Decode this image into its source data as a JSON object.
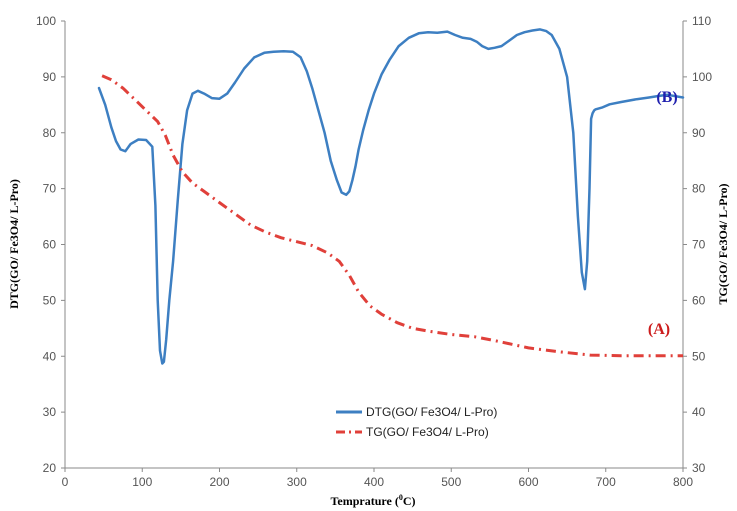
{
  "chart_data": {
    "type": "line",
    "xlabel": "Temprature (",
    "xlabel_sup": "0",
    "xlabel_end": "C)",
    "ylabel_left": "DTG(GO/ Fe3O4/ L-Pro)",
    "ylabel_right": "TG(GO/ Fe3O4/ L-Pro)",
    "x_ticks": [
      "0",
      "100",
      "200",
      "300",
      "400",
      "500",
      "600",
      "700",
      "800"
    ],
    "y_left_ticks": [
      "20",
      "30",
      "40",
      "50",
      "60",
      "70",
      "80",
      "90",
      "100"
    ],
    "y_right_ticks": [
      "30",
      "40",
      "50",
      "60",
      "70",
      "80",
      "90",
      "100",
      "110"
    ],
    "xlim": [
      0,
      800
    ],
    "ylim_left": [
      20,
      100
    ],
    "ylim_right": [
      30,
      110
    ],
    "grid": false,
    "legend_position": "bottom-center",
    "series": [
      {
        "name": "DTG(GO/ Fe3O4/ L-Pro)",
        "axis": "left",
        "color": "#3d7fc2",
        "style": "solid",
        "label": "(B)",
        "label_color": "#1f1fae",
        "x": [
          44,
          52,
          60,
          66,
          72,
          78,
          85,
          95,
          105,
          113,
          117,
          120,
          123,
          126,
          128,
          131,
          135,
          140,
          146,
          152,
          158,
          165,
          172,
          180,
          190,
          200,
          210,
          220,
          232,
          245,
          258,
          270,
          283,
          295,
          305,
          313,
          320,
          328,
          336,
          344,
          352,
          358,
          364,
          368,
          372,
          376,
          380,
          386,
          393,
          400,
          410,
          420,
          432,
          445,
          458,
          470,
          482,
          495,
          505,
          515,
          525,
          533,
          540,
          548,
          556,
          565,
          575,
          585,
          595,
          605,
          615,
          623,
          630,
          640,
          650,
          658,
          664,
          669,
          673,
          676,
          679,
          681,
          683,
          685,
          687,
          690,
          695,
          705,
          720,
          740,
          756,
          765,
          780,
          800
        ],
        "y": [
          88,
          85,
          81,
          78.5,
          77,
          76.7,
          78,
          78.8,
          78.7,
          77.5,
          67,
          50,
          41,
          38.7,
          39,
          43,
          50,
          57,
          68,
          78,
          84,
          87,
          87.5,
          87,
          86.2,
          86.1,
          87,
          89,
          91.5,
          93.5,
          94.3,
          94.5,
          94.6,
          94.5,
          93.5,
          91,
          88,
          84,
          80,
          75,
          71.5,
          69.3,
          68.9,
          69.5,
          71.5,
          74,
          77,
          80.5,
          84,
          87,
          90.5,
          93,
          95.5,
          97,
          97.8,
          98,
          97.9,
          98.1,
          97.5,
          97,
          96.8,
          96.3,
          95.5,
          95,
          95.2,
          95.5,
          96.5,
          97.5,
          98,
          98.3,
          98.5,
          98.2,
          97.5,
          95,
          90,
          80,
          65,
          55,
          52,
          57,
          70,
          82.5,
          83.5,
          84,
          84.2,
          84.3,
          84.5,
          85.1,
          85.5,
          86,
          86.3,
          86.5,
          86.8,
          86.3
        ]
      },
      {
        "name": "TG(GO/ Fe3O4/ L-Pro)",
        "axis": "right",
        "color": "#e0403a",
        "style": "dashdot",
        "label": "(A)",
        "label_color": "#cc1c1c",
        "x": [
          48,
          60,
          75,
          90,
          105,
          120,
          130,
          140,
          152,
          165,
          180,
          200,
          220,
          240,
          260,
          280,
          300,
          320,
          340,
          355,
          368,
          380,
          395,
          410,
          430,
          450,
          470,
          500,
          530,
          560,
          600,
          640,
          680,
          720,
          760,
          800
        ],
        "y": [
          100.2,
          99.5,
          98,
          96,
          94,
          92,
          89.5,
          86,
          83,
          81,
          79.5,
          77.5,
          75.5,
          73.5,
          72.2,
          71.2,
          70.5,
          69.8,
          68.5,
          67,
          64.5,
          61.5,
          59,
          57.5,
          56,
          55,
          54.5,
          53.9,
          53.5,
          52.7,
          51.5,
          50.8,
          50.2,
          50.1,
          50.1,
          50.1
        ]
      }
    ]
  }
}
